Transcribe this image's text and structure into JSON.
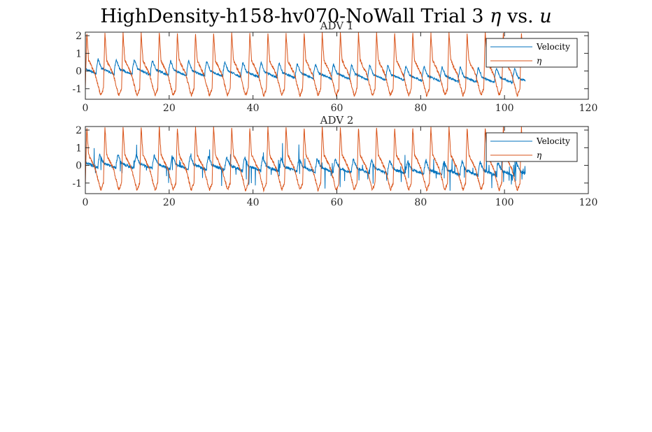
{
  "figure": {
    "title_text": "HighDensity-h158-hv070-NoWall Trial 3 ",
    "title_eta": "η",
    "title_vs": " vs. ",
    "title_u": "u"
  },
  "chart_data": [
    {
      "type": "line",
      "title": "ADV 1",
      "xlim": [
        0,
        120
      ],
      "ylim": [
        -1.6,
        2.2
      ],
      "xticks": [
        0,
        20,
        40,
        60,
        80,
        100,
        120
      ],
      "yticks": [
        -1,
        0,
        1,
        2
      ],
      "legend_position": "top-right",
      "grid": false,
      "series": [
        {
          "name": "Velocity",
          "color": "#0072BD",
          "x_range": [
            0,
            105
          ],
          "wave_period": 4.32,
          "phase_offset": 0.4,
          "baseline_start": 0.1,
          "baseline_end": -0.45,
          "peak": 0.6,
          "noise": 0.06,
          "spikes": false
        },
        {
          "name": "η",
          "color": "#D95319",
          "x_range": [
            0,
            105
          ],
          "wave_period": 4.32,
          "phase_offset": 0.0,
          "peak_max": 2.2,
          "trough_min": -1.6,
          "noise": 0.08
        }
      ]
    },
    {
      "type": "line",
      "title": "ADV 2",
      "xlim": [
        0,
        120
      ],
      "ylim": [
        -1.6,
        2.2
      ],
      "xticks": [
        0,
        20,
        40,
        60,
        80,
        100,
        120
      ],
      "yticks": [
        -1,
        0,
        1,
        2
      ],
      "legend_position": "top-right",
      "grid": false,
      "series": [
        {
          "name": "Velocity",
          "color": "#0072BD",
          "x_range": [
            0,
            105
          ],
          "wave_period": 4.32,
          "phase_offset": 0.3,
          "baseline_start": 0.1,
          "baseline_end": -0.4,
          "peak": 0.55,
          "noise": 0.08,
          "spikes": true
        },
        {
          "name": "η",
          "color": "#D95319",
          "x_range": [
            0,
            105
          ],
          "wave_period": 4.32,
          "phase_offset": 0.0,
          "peak_max": 2.2,
          "trough_min": -1.6,
          "noise": 0.08
        }
      ]
    }
  ]
}
